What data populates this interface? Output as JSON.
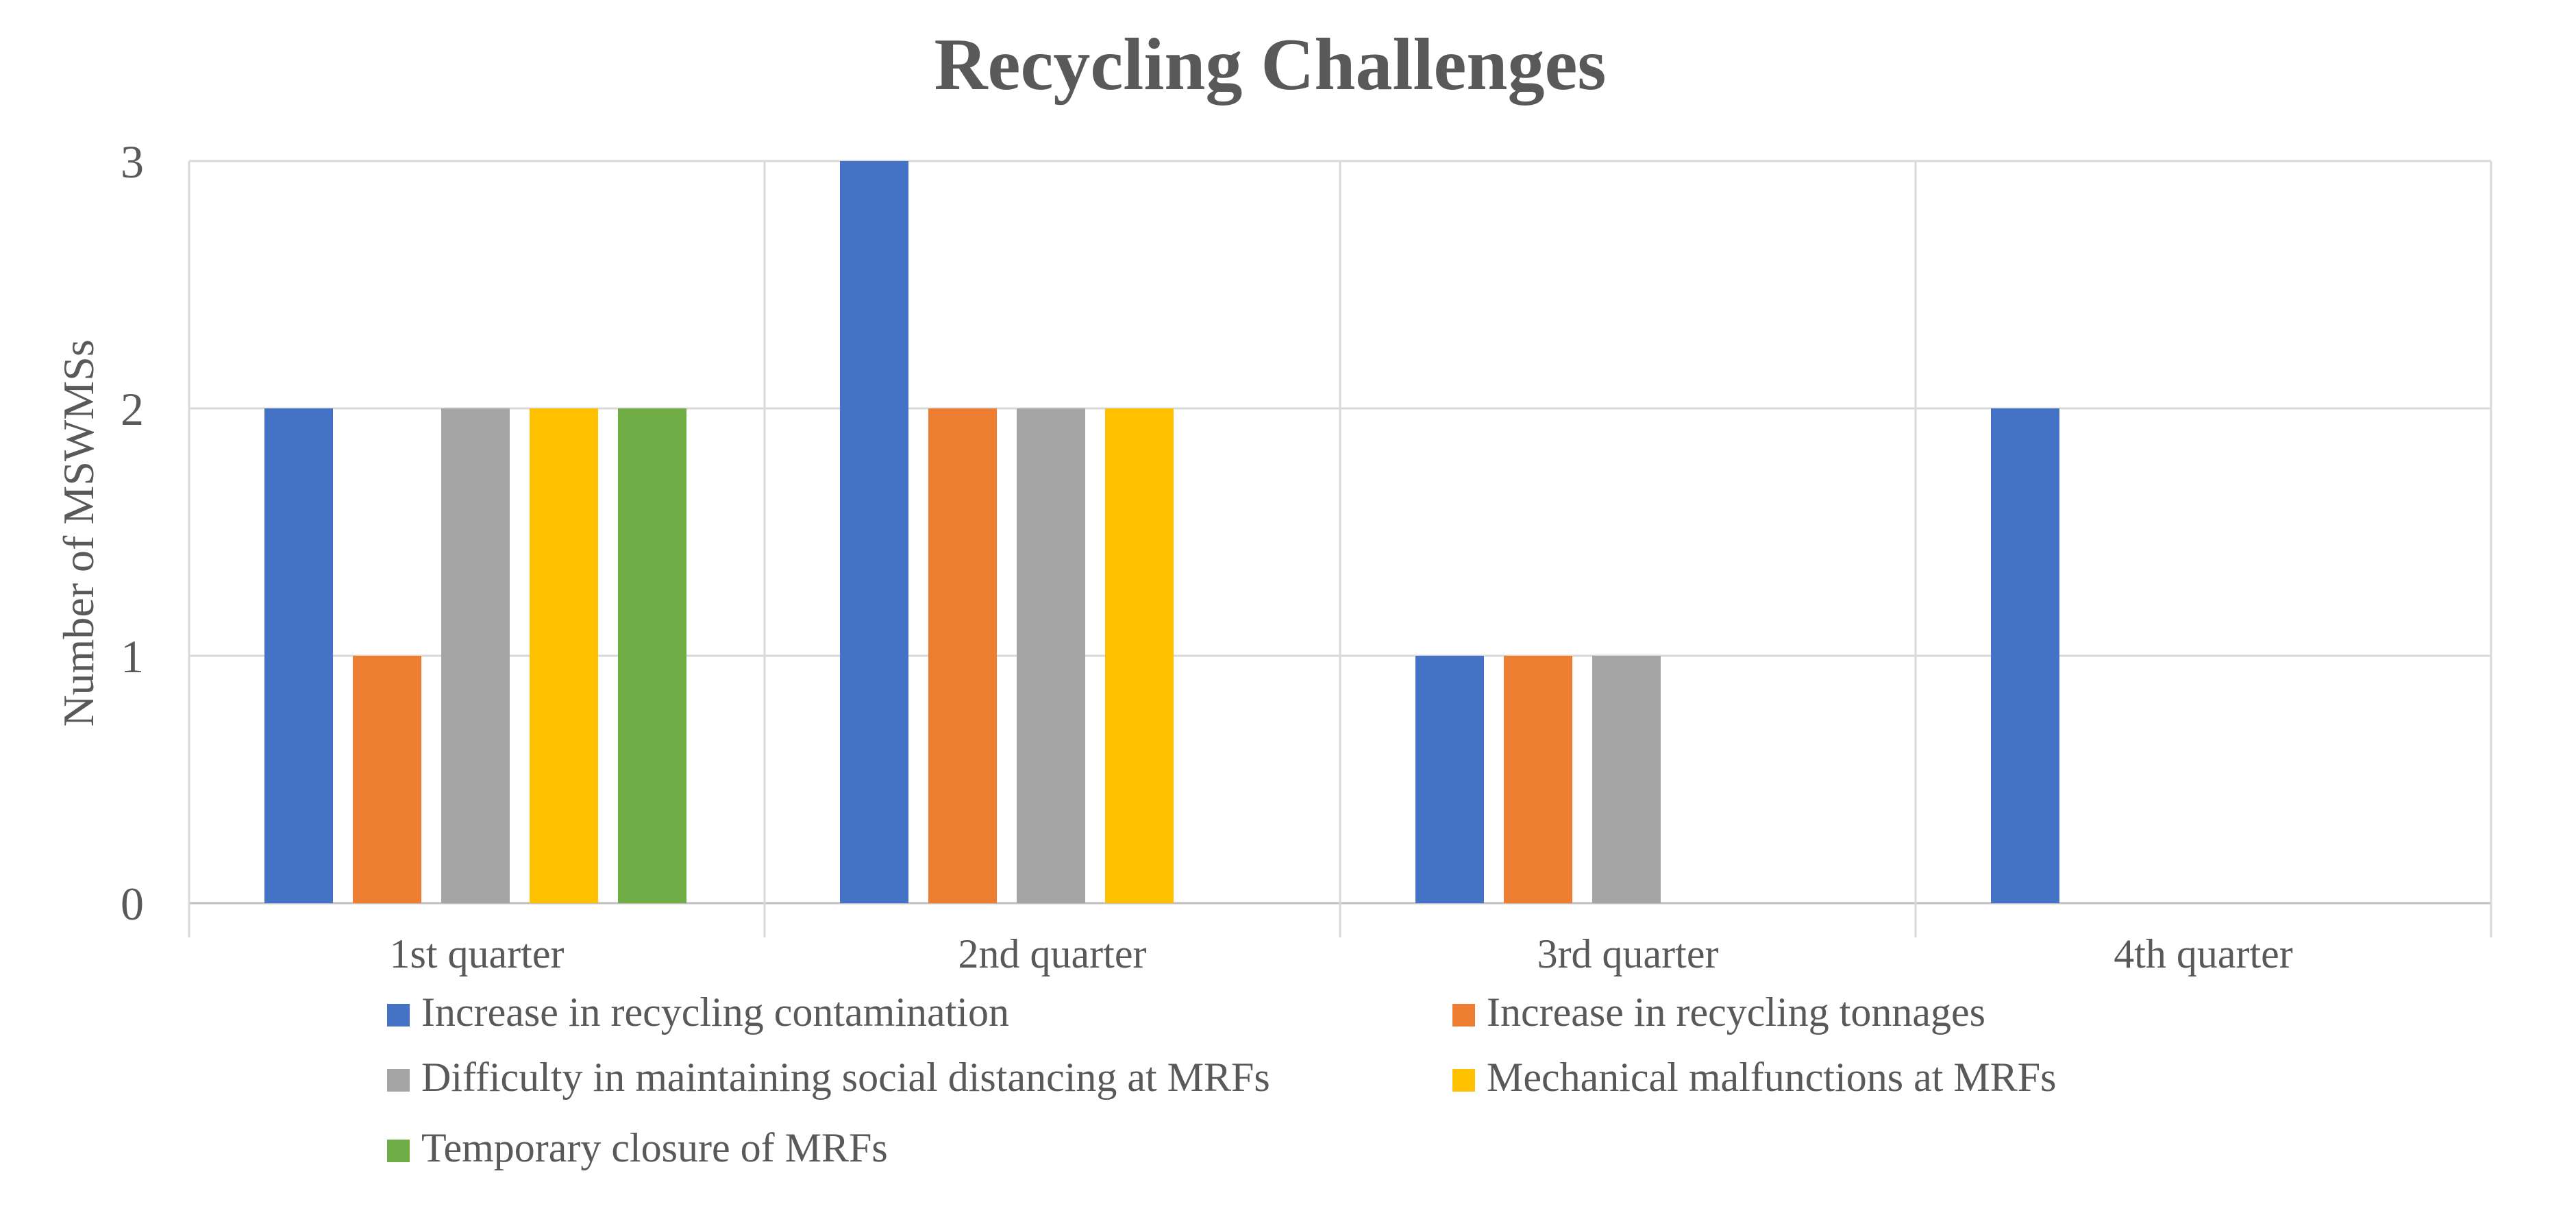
{
  "chart_data": {
    "type": "bar",
    "title": "Recycling Challenges",
    "xlabel": "",
    "ylabel": "Number of MSWMSs",
    "ylim": [
      0,
      3
    ],
    "yticks": [
      0,
      1,
      2,
      3
    ],
    "grid": true,
    "legend_position": "bottom",
    "categories": [
      "1st quarter",
      "2nd quarter",
      "3rd quarter",
      "4th quarter"
    ],
    "series": [
      {
        "name": "Increase in recycling contamination",
        "color": "#4472C4",
        "values": [
          2,
          3,
          1,
          2
        ]
      },
      {
        "name": "Increase in recycling tonnages",
        "color": "#ED7D31",
        "values": [
          1,
          2,
          1,
          0
        ]
      },
      {
        "name": "Difficulty in maintaining social distancing at MRFs",
        "color": "#A5A5A5",
        "values": [
          2,
          2,
          1,
          0
        ]
      },
      {
        "name": "Mechanical malfunctions at MRFs",
        "color": "#FFC000",
        "values": [
          2,
          2,
          0,
          0
        ]
      },
      {
        "name": "Temporary closure of MRFs",
        "color": "#70AD47",
        "values": [
          2,
          0,
          0,
          0
        ]
      }
    ]
  }
}
